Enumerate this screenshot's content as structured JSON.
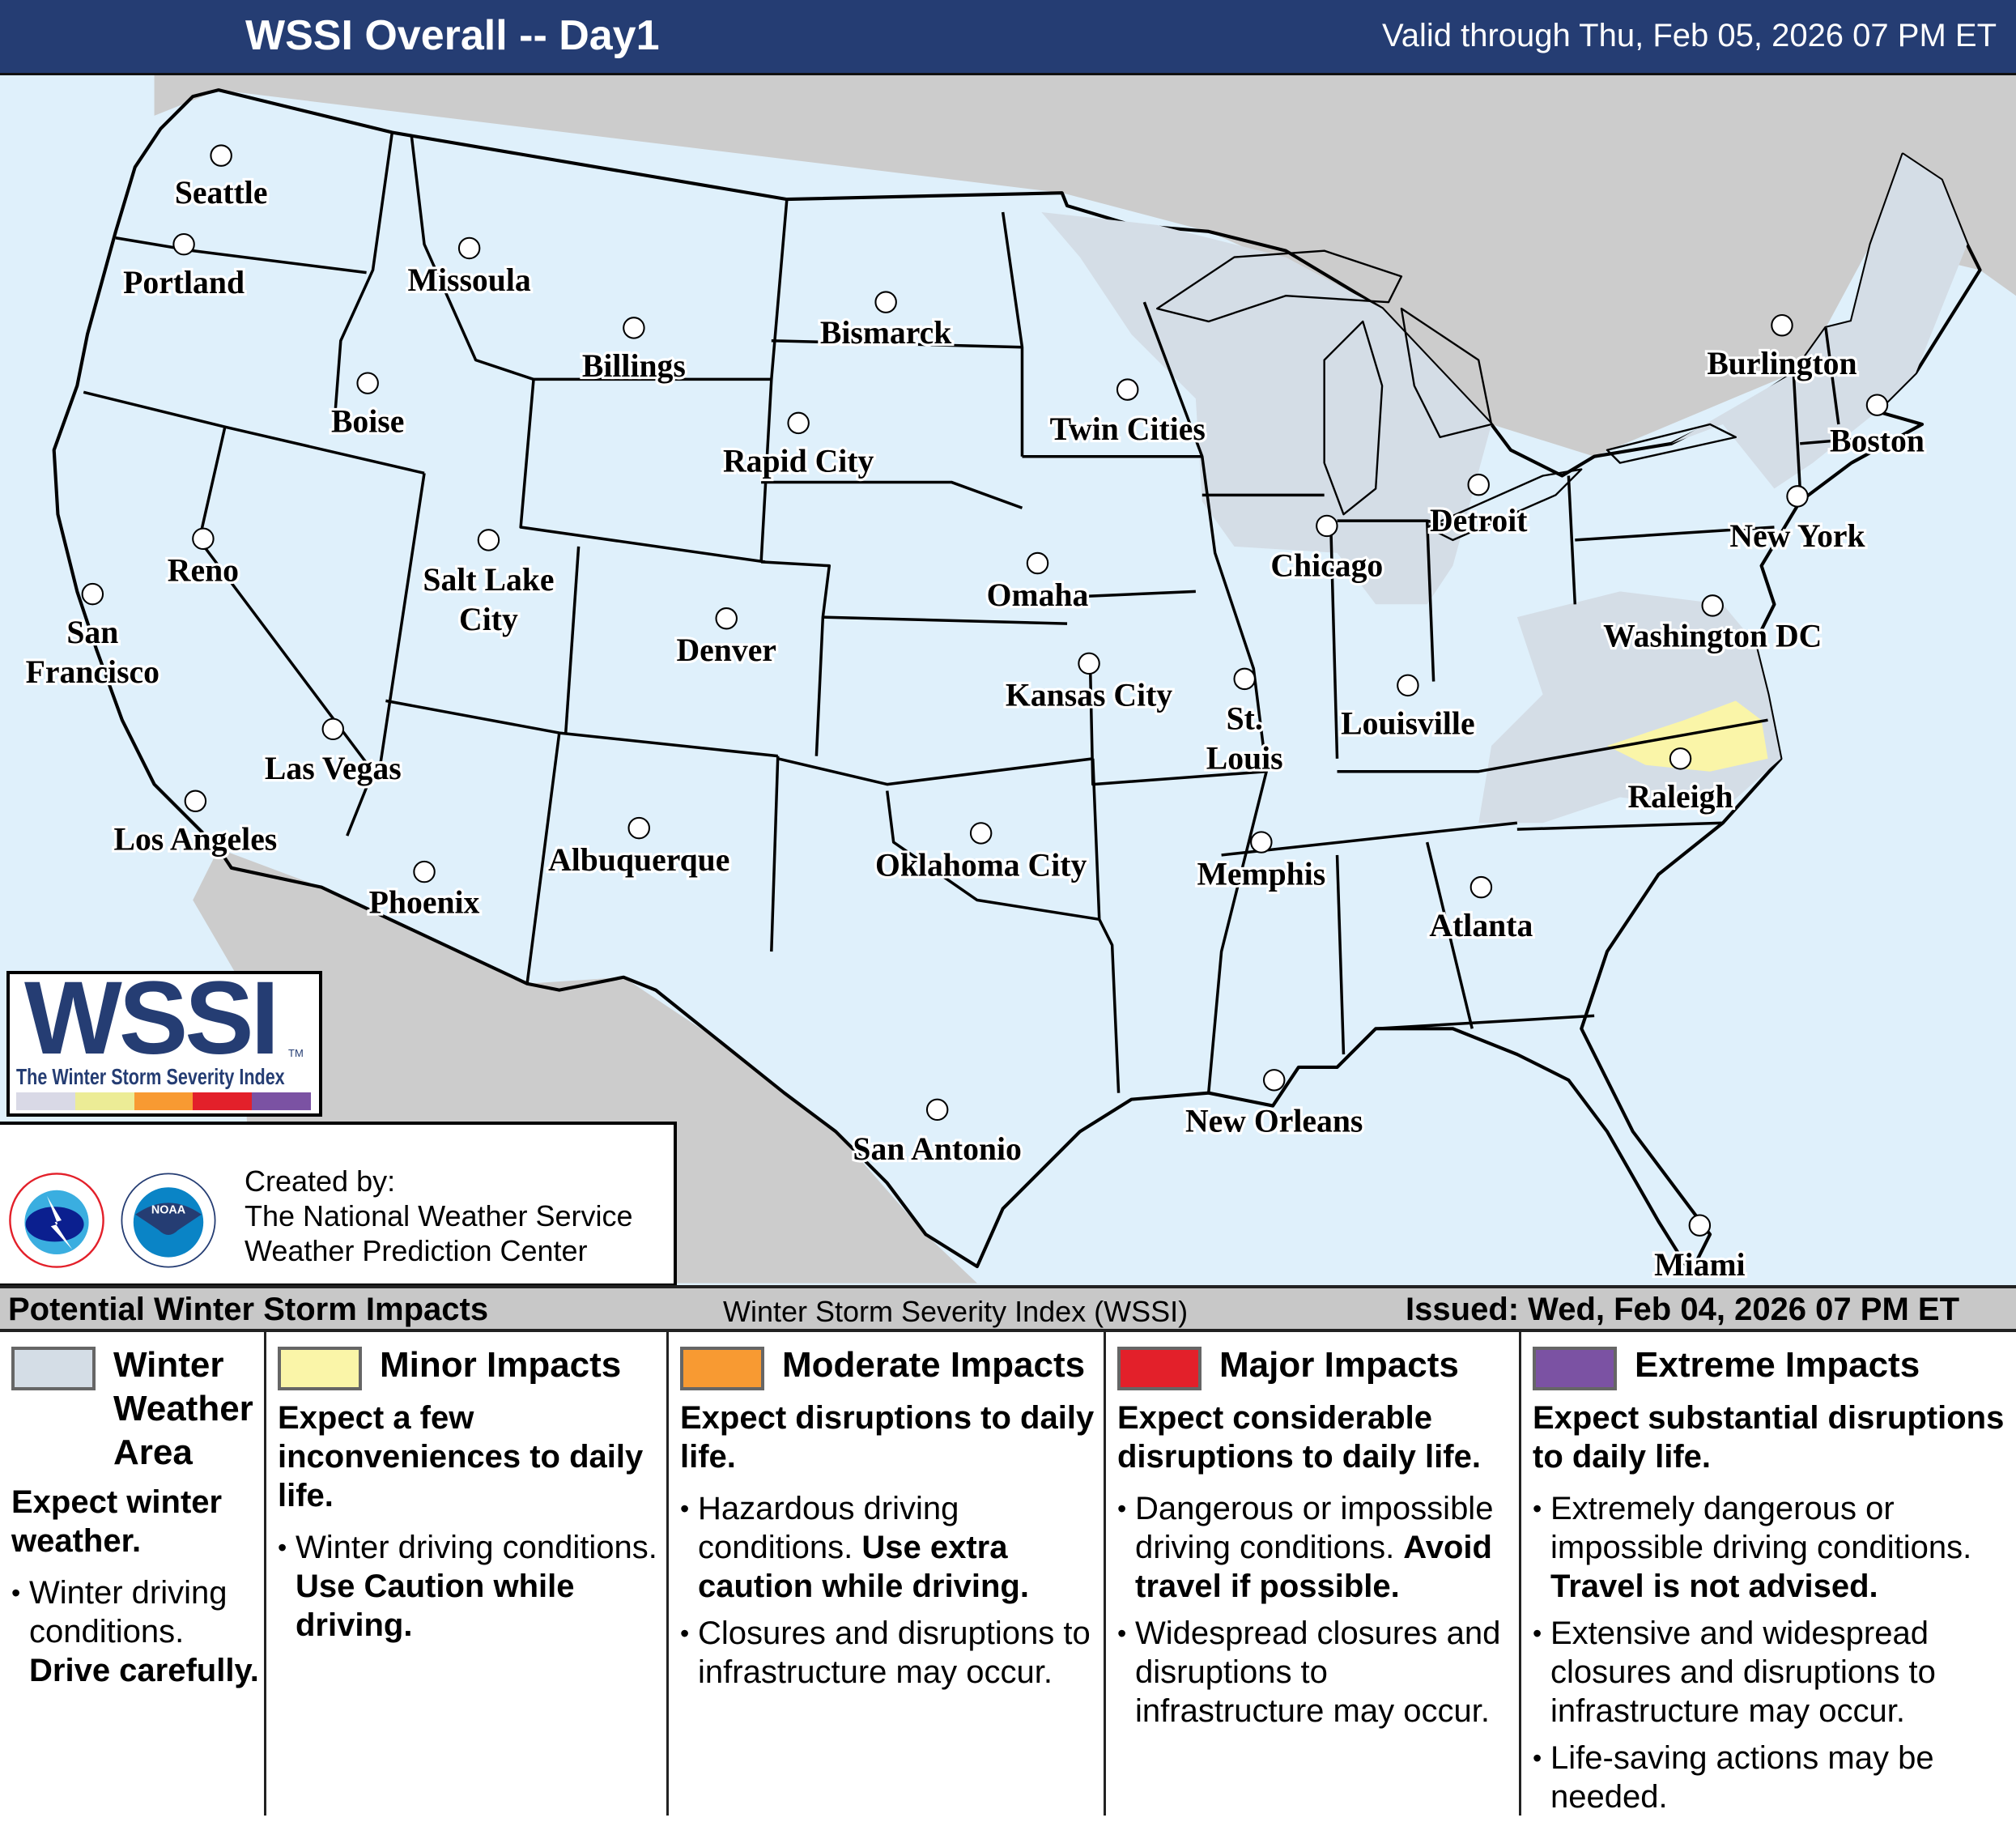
{
  "header": {
    "title": "WSSI Overall -- Day1",
    "valid": "Valid through Thu, Feb 05, 2026 07 PM ET"
  },
  "colors": {
    "header_bg": "#253d73",
    "ocean": "#dff0fb",
    "foreign_land": "#cccccc",
    "us_land": "#f7f8fb",
    "winter_weather_area": "#d4dde6",
    "minor": "#faf5a8",
    "moderate": "#f89a32",
    "major": "#e3202a",
    "extreme": "#7b52a3"
  },
  "map": {
    "impact_areas_shown": [
      "Winter Weather Area",
      "Minor Impacts"
    ],
    "cities": [
      {
        "name": "Seattle"
      },
      {
        "name": "Portland"
      },
      {
        "name": "Missoula"
      },
      {
        "name": "Billings"
      },
      {
        "name": "Bismarck"
      },
      {
        "name": "Boise"
      },
      {
        "name": "Rapid City"
      },
      {
        "name": "Twin Cities"
      },
      {
        "name": "Burlington"
      },
      {
        "name": "Boston"
      },
      {
        "name": "Detroit"
      },
      {
        "name": "New York"
      },
      {
        "name": "Chicago"
      },
      {
        "name": "Reno"
      },
      {
        "name": "Salt Lake",
        "name2": "City"
      },
      {
        "name": "Omaha"
      },
      {
        "name": "San",
        "name2": "Francisco"
      },
      {
        "name": "Denver"
      },
      {
        "name": "Washington DC"
      },
      {
        "name": "Kansas City"
      },
      {
        "name": "St.",
        "name2": "Louis"
      },
      {
        "name": "Louisville"
      },
      {
        "name": "Las Vegas"
      },
      {
        "name": "Raleigh"
      },
      {
        "name": "Los Angeles"
      },
      {
        "name": "Oklahoma City"
      },
      {
        "name": "Albuquerque"
      },
      {
        "name": "Memphis"
      },
      {
        "name": "Phoenix"
      },
      {
        "name": "Atlanta"
      },
      {
        "name": "New Orleans"
      },
      {
        "name": "San Antonio"
      },
      {
        "name": "Miami"
      }
    ]
  },
  "logo": {
    "wssi": "WSSI",
    "tm": "TM",
    "subtitle": "The Winter Storm Severity Index",
    "scale_colors": [
      "#d9d9e6",
      "#ecec96",
      "#f89a32",
      "#e3202a",
      "#7b52a3"
    ]
  },
  "credits": {
    "line1": "Created by:",
    "line2": "The National Weather Service",
    "line3": "Weather Prediction Center",
    "nws_seal_text": "NATIONAL WEATHER SERVICE",
    "noaa_seal_text": "NOAA"
  },
  "legend": {
    "heading": "Potential Winter Storm Impacts",
    "center": "Winter Storm Severity Index (WSSI)",
    "issued": "Issued: Wed, Feb 04, 2026 07 PM ET",
    "columns": [
      {
        "title": "Winter Weather Area",
        "color": "#d4dde6",
        "lead": "Expect winter weather.",
        "bullets": [
          {
            "text": "Winter driving conditions. ",
            "bold": "Drive carefully."
          }
        ]
      },
      {
        "title": "Minor Impacts",
        "color": "#faf5a8",
        "lead": "Expect a few inconveniences to daily life.",
        "bullets": [
          {
            "text": "Winter driving conditions. ",
            "bold": "Use Caution while driving."
          }
        ]
      },
      {
        "title": "Moderate Impacts",
        "color": "#f89a32",
        "lead": "Expect disruptions to daily life.",
        "bullets": [
          {
            "text": "Hazardous driving conditions. ",
            "bold": "Use extra caution while driving."
          },
          {
            "text": "Closures and disruptions to infrastructure may occur.",
            "bold": ""
          }
        ]
      },
      {
        "title": "Major Impacts",
        "color": "#e3202a",
        "lead": "Expect considerable disruptions to daily life.",
        "bullets": [
          {
            "text": "Dangerous or impossible driving conditions. ",
            "bold": "Avoid travel if possible."
          },
          {
            "text": "Widespread closures and disruptions to infrastructure may occur.",
            "bold": ""
          }
        ]
      },
      {
        "title": "Extreme Impacts",
        "color": "#7b52a3",
        "lead": "Expect substantial disruptions to daily life.",
        "bullets": [
          {
            "text": "Extremely dangerous or impossible driving conditions. ",
            "bold": "Travel is not advised."
          },
          {
            "text": "Extensive and widespread closures and disruptions to infrastructure may occur.",
            "bold": ""
          },
          {
            "text": "Life-saving actions may be needed.",
            "bold": ""
          }
        ]
      }
    ]
  }
}
